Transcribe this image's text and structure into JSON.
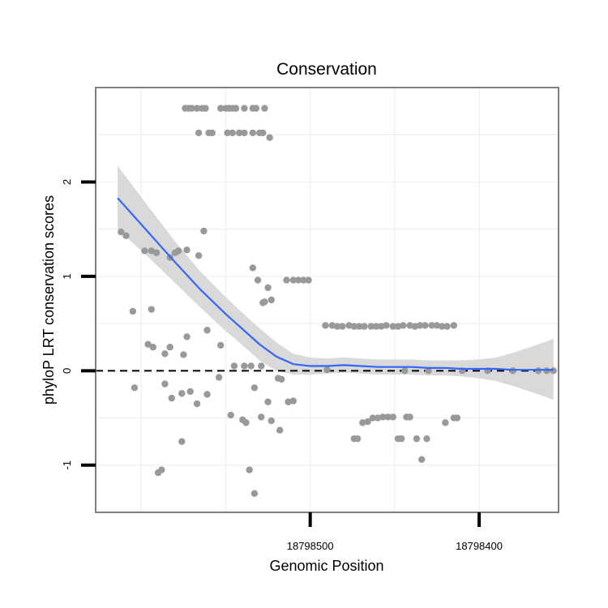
{
  "chart_data": {
    "type": "scatter",
    "title": "Conservation",
    "xlabel": "Genomic Position",
    "ylabel": "phyloP LRT conservation scores",
    "x_reversed": true,
    "xlim": [
      18798627,
      18798353
    ],
    "ylim": [
      -1.5,
      3.0
    ],
    "x_ticks": [
      {
        "value": 18798500,
        "label": "18798500"
      },
      {
        "value": 18798400,
        "label": "18798400"
      }
    ],
    "y_ticks": [
      {
        "value": -1,
        "label": "-1"
      },
      {
        "value": 0,
        "label": "0"
      },
      {
        "value": 1,
        "label": "1"
      },
      {
        "value": 2,
        "label": "2"
      }
    ],
    "reference_line": {
      "y": 0,
      "style": "dashed"
    },
    "colors": {
      "points": "#999999",
      "smooth": "#3366FF",
      "ribbon": "#d9d9d9",
      "reference": "#000000",
      "frame": "#7f7f7f",
      "grid": "#f2f2f2"
    },
    "points": [
      [
        18798574,
        2.78
      ],
      [
        18798572,
        2.78
      ],
      [
        18798570,
        2.78
      ],
      [
        18798567,
        2.78
      ],
      [
        18798564,
        2.78
      ],
      [
        18798562,
        2.78
      ],
      [
        18798553,
        2.78
      ],
      [
        18798550,
        2.78
      ],
      [
        18798548,
        2.78
      ],
      [
        18798546,
        2.78
      ],
      [
        18798544,
        2.78
      ],
      [
        18798539,
        2.78
      ],
      [
        18798534,
        2.78
      ],
      [
        18798532,
        2.78
      ],
      [
        18798527,
        2.78
      ],
      [
        18798566,
        2.52
      ],
      [
        18798560,
        2.52
      ],
      [
        18798558,
        2.52
      ],
      [
        18798549,
        2.52
      ],
      [
        18798546,
        2.52
      ],
      [
        18798542,
        2.52
      ],
      [
        18798539,
        2.52
      ],
      [
        18798534,
        2.52
      ],
      [
        18798530,
        2.52
      ],
      [
        18798528,
        2.52
      ],
      [
        18798524,
        2.47
      ],
      [
        18798612,
        1.47
      ],
      [
        18798609,
        1.43
      ],
      [
        18798598,
        1.27
      ],
      [
        18798594,
        1.27
      ],
      [
        18798591,
        1.25
      ],
      [
        18798583,
        1.2
      ],
      [
        18798580,
        1.25
      ],
      [
        18798578,
        1.27
      ],
      [
        18798573,
        1.28
      ],
      [
        18798566,
        1.22
      ],
      [
        18798563,
        1.48
      ],
      [
        18798605,
        0.63
      ],
      [
        18798594,
        0.65
      ],
      [
        18798534,
        1.09
      ],
      [
        18798531,
        0.96
      ],
      [
        18798528,
        0.72
      ],
      [
        18798525,
        0.88
      ],
      [
        18798527,
        0.73
      ],
      [
        18798523,
        0.75
      ],
      [
        18798514,
        0.96
      ],
      [
        18798510,
        0.96
      ],
      [
        18798507,
        0.96
      ],
      [
        18798504,
        0.96
      ],
      [
        18798501,
        0.96
      ],
      [
        18798596,
        0.28
      ],
      [
        18798593,
        0.25
      ],
      [
        18798586,
        0.18
      ],
      [
        18798583,
        0.25
      ],
      [
        18798575,
        0.17
      ],
      [
        18798573,
        0.36
      ],
      [
        18798561,
        0.43
      ],
      [
        18798553,
        0.27
      ],
      [
        18798545,
        0.05
      ],
      [
        18798539,
        0.05
      ],
      [
        18798535,
        0.05
      ],
      [
        18798529,
        0.05
      ],
      [
        18798519,
        -0.08
      ],
      [
        18798517,
        -0.09
      ],
      [
        18798604,
        -0.18
      ],
      [
        18798586,
        -0.14
      ],
      [
        18798582,
        -0.29
      ],
      [
        18798576,
        -0.24
      ],
      [
        18798571,
        -0.22
      ],
      [
        18798567,
        -0.35
      ],
      [
        18798561,
        -0.25
      ],
      [
        18798554,
        -0.07
      ],
      [
        18798547,
        -0.47
      ],
      [
        18798540,
        -0.52
      ],
      [
        18798538,
        -0.55
      ],
      [
        18798533,
        -0.18
      ],
      [
        18798529,
        -0.49
      ],
      [
        18798525,
        -0.33
      ],
      [
        18798523,
        -0.53
      ],
      [
        18798518,
        -0.63
      ],
      [
        18798513,
        -0.33
      ],
      [
        18798510,
        -0.32
      ],
      [
        18798576,
        -0.75
      ],
      [
        18798590,
        -1.08
      ],
      [
        18798588,
        -1.05
      ],
      [
        18798536,
        -1.05
      ],
      [
        18798533,
        -1.3
      ],
      [
        18798491,
        0.48
      ],
      [
        18798487,
        0.48
      ],
      [
        18798484,
        0.47
      ],
      [
        18798481,
        0.47
      ],
      [
        18798477,
        0.48
      ],
      [
        18798474,
        0.47
      ],
      [
        18798471,
        0.47
      ],
      [
        18798468,
        0.47
      ],
      [
        18798464,
        0.47
      ],
      [
        18798461,
        0.47
      ],
      [
        18798458,
        0.47
      ],
      [
        18798455,
        0.48
      ],
      [
        18798451,
        0.47
      ],
      [
        18798448,
        0.47
      ],
      [
        18798445,
        0.48
      ],
      [
        18798441,
        0.48
      ],
      [
        18798438,
        0.47
      ],
      [
        18798435,
        0.48
      ],
      [
        18798432,
        0.48
      ],
      [
        18798428,
        0.48
      ],
      [
        18798425,
        0.48
      ],
      [
        18798422,
        0.47
      ],
      [
        18798419,
        0.47
      ],
      [
        18798415,
        0.48
      ],
      [
        18798490,
        0.01
      ],
      [
        18798474,
        -0.72
      ],
      [
        18798472,
        -0.72
      ],
      [
        18798469,
        -0.55
      ],
      [
        18798466,
        -0.54
      ],
      [
        18798463,
        -0.5
      ],
      [
        18798460,
        -0.5
      ],
      [
        18798457,
        -0.49
      ],
      [
        18798454,
        -0.49
      ],
      [
        18798451,
        -0.49
      ],
      [
        18798448,
        -0.72
      ],
      [
        18798446,
        -0.72
      ],
      [
        18798443,
        -0.49
      ],
      [
        18798441,
        -0.49
      ],
      [
        18798437,
        -0.72
      ],
      [
        18798434,
        -0.94
      ],
      [
        18798431,
        -0.72
      ],
      [
        18798420,
        -0.55
      ],
      [
        18798415,
        -0.5
      ],
      [
        18798413,
        -0.5
      ],
      [
        18798444,
        0.0
      ],
      [
        18798430,
        0.0
      ],
      [
        18798410,
        0.0
      ],
      [
        18798395,
        0.0
      ],
      [
        18798380,
        0.0
      ],
      [
        18798365,
        0.0
      ],
      [
        18798360,
        0.0
      ],
      [
        18798356,
        0.0
      ]
    ],
    "smooth": [
      [
        18798614,
        1.83
      ],
      [
        18798595,
        1.45
      ],
      [
        18798580,
        1.15
      ],
      [
        18798565,
        0.86
      ],
      [
        18798550,
        0.6
      ],
      [
        18798540,
        0.44
      ],
      [
        18798530,
        0.28
      ],
      [
        18798520,
        0.15
      ],
      [
        18798510,
        0.07
      ],
      [
        18798500,
        0.05
      ],
      [
        18798490,
        0.05
      ],
      [
        18798480,
        0.06
      ],
      [
        18798470,
        0.05
      ],
      [
        18798460,
        0.04
      ],
      [
        18798450,
        0.04
      ],
      [
        18798440,
        0.04
      ],
      [
        18798430,
        0.03
      ],
      [
        18798420,
        0.03
      ],
      [
        18798410,
        0.02
      ],
      [
        18798400,
        0.02
      ],
      [
        18798390,
        0.02
      ],
      [
        18798380,
        0.01
      ],
      [
        18798370,
        0.01
      ],
      [
        18798360,
        0.01
      ],
      [
        18798356,
        0.01
      ]
    ],
    "ribbon_upper": [
      [
        18798614,
        2.17
      ],
      [
        18798595,
        1.72
      ],
      [
        18798580,
        1.37
      ],
      [
        18798565,
        1.05
      ],
      [
        18798550,
        0.78
      ],
      [
        18798540,
        0.61
      ],
      [
        18798530,
        0.45
      ],
      [
        18798520,
        0.3
      ],
      [
        18798510,
        0.18
      ],
      [
        18798500,
        0.14
      ],
      [
        18798490,
        0.13
      ],
      [
        18798480,
        0.14
      ],
      [
        18798470,
        0.13
      ],
      [
        18798460,
        0.12
      ],
      [
        18798450,
        0.12
      ],
      [
        18798440,
        0.12
      ],
      [
        18798430,
        0.11
      ],
      [
        18798420,
        0.11
      ],
      [
        18798410,
        0.11
      ],
      [
        18798400,
        0.12
      ],
      [
        18798390,
        0.14
      ],
      [
        18798380,
        0.19
      ],
      [
        18798370,
        0.25
      ],
      [
        18798360,
        0.31
      ],
      [
        18798356,
        0.34
      ]
    ],
    "ribbon_lower": [
      [
        18798614,
        1.5
      ],
      [
        18798595,
        1.19
      ],
      [
        18798580,
        0.93
      ],
      [
        18798565,
        0.67
      ],
      [
        18798550,
        0.42
      ],
      [
        18798540,
        0.27
      ],
      [
        18798530,
        0.11
      ],
      [
        18798520,
        0.0
      ],
      [
        18798510,
        -0.04
      ],
      [
        18798500,
        -0.04
      ],
      [
        18798490,
        -0.03
      ],
      [
        18798480,
        -0.02
      ],
      [
        18798470,
        -0.03
      ],
      [
        18798460,
        -0.04
      ],
      [
        18798450,
        -0.04
      ],
      [
        18798440,
        -0.04
      ],
      [
        18798430,
        -0.05
      ],
      [
        18798420,
        -0.05
      ],
      [
        18798410,
        -0.06
      ],
      [
        18798400,
        -0.08
      ],
      [
        18798390,
        -0.11
      ],
      [
        18798380,
        -0.16
      ],
      [
        18798370,
        -0.22
      ],
      [
        18798360,
        -0.28
      ],
      [
        18798356,
        -0.31
      ]
    ]
  }
}
